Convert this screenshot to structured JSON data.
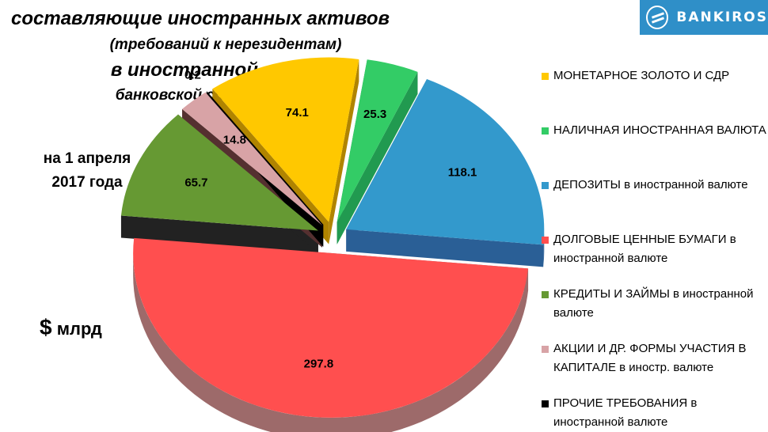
{
  "logo": {
    "text": "BANKIROS"
  },
  "date_label": [
    "на 1 апреля",
    "2017 года"
  ],
  "unit_label": {
    "symbol": "$",
    "text": "млрд"
  },
  "chart_data": {
    "type": "pie",
    "title": [
      "составляющие иностранных активов",
      "(требований к нерезидентам)",
      "в иностранной валюте",
      "банковской системы России"
    ],
    "subtitle": "",
    "units": "$ млрд",
    "legend_position": "right",
    "slices": [
      {
        "label": "МОНЕТАРНОЕ ЗОЛОТО И СДР",
        "value": 74.1,
        "color": "#ffc800",
        "side_color": "#b08400"
      },
      {
        "label": "НАЛИЧНАЯ ИНОСТРАННАЯ ВАЛЮТА",
        "value": 25.3,
        "color": "#33cc66",
        "side_color": "#219a50"
      },
      {
        "label": "ДЕПОЗИТЫ в иностранной валюте",
        "value": 118.1,
        "color": "#3399cc",
        "side_color": "#2a5f96"
      },
      {
        "label": "ДОЛГОВЫЕ ЦЕННЫЕ БУМАГИ в иностранной валюте",
        "value": 297.8,
        "color": "#ff4f4f",
        "side_color": "#9d6a6a"
      },
      {
        "label": "КРЕДИТЫ И ЗАЙМЫ в иностранной валюте",
        "value": 65.7,
        "color": "#669933",
        "side_color": "#222222"
      },
      {
        "label": "АКЦИИ И ДР. ФОРМЫ УЧАСТИЯ В КАПИТАЛЕ в иностр. валюте",
        "value": 14.8,
        "color": "#d8a3a6",
        "side_color": "#553030"
      },
      {
        "label": "ПРОЧИЕ ТРЕБОВАНИЯ в иностранной валюте",
        "value": 0.2,
        "color": "#000000",
        "side_color": "#000000"
      }
    ]
  }
}
